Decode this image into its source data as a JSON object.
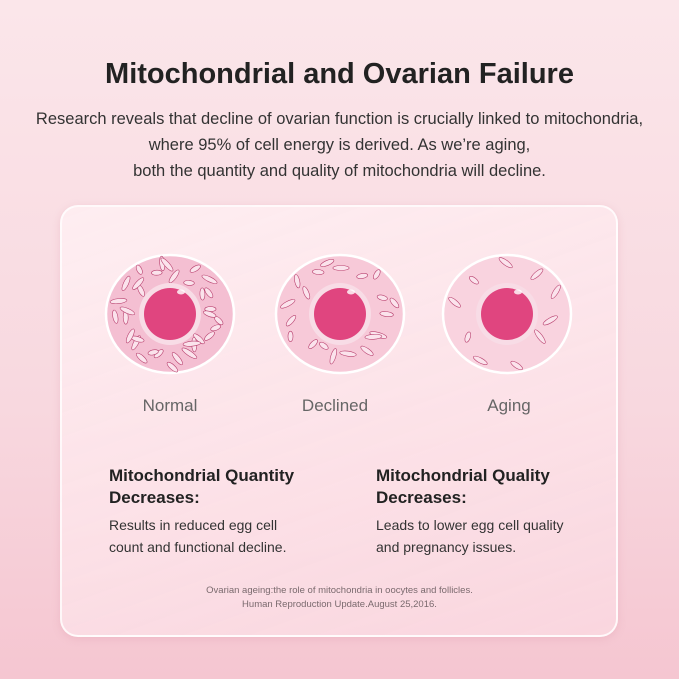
{
  "title": "Mitochondrial and Ovarian Failure",
  "intro": [
    "Research reveals that decline of ovarian function is crucially linked to mitochondria,",
    "where 95% of cell energy is derived. As we’re aging,",
    "both the quantity and quality of mitochondria will decline."
  ],
  "cells": [
    {
      "label": "Normal"
    },
    {
      "label": "Declined"
    },
    {
      "label": "Aging"
    }
  ],
  "colors": {
    "cell_outer": "#f6c6d6",
    "nucleus": "#e0457f",
    "accent": "#e0457f"
  },
  "quantity": {
    "heading": [
      "Mitochondrial Quantity",
      "Decreases:"
    ],
    "body": [
      "Results in reduced egg cell",
      "count and functional decline."
    ]
  },
  "quality": {
    "heading": [
      "Mitochondrial Quality",
      "Decreases:"
    ],
    "body": [
      "Leads to lower egg cell quality",
      "and pregnancy issues."
    ]
  },
  "citation": [
    "Ovarian ageing:the role of mitochondria in oocytes and follicles.",
    "Human Reproduction Update.August 25,2016."
  ]
}
